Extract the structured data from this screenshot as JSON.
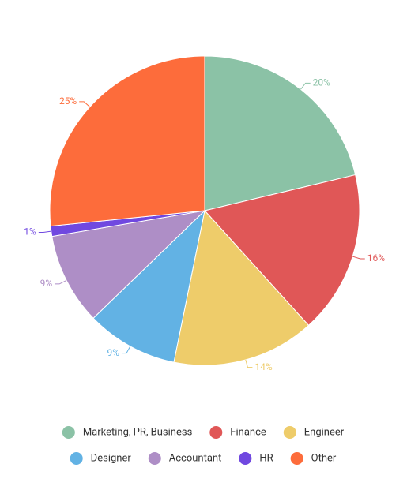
{
  "chart_data": {
    "type": "pie",
    "categories": [
      "Marketing, PR, Business",
      "Finance",
      "Engineer",
      "Designer",
      "Accountant",
      "HR",
      "Other"
    ],
    "values": [
      20,
      16,
      14,
      9,
      9,
      1,
      25
    ],
    "value_labels": [
      "20%",
      "16%",
      "14%",
      "9%",
      "9%",
      "1%",
      "25%"
    ],
    "colors": [
      "#8bc2a6",
      "#e05757",
      "#eecc6a",
      "#62b2e4",
      "#ae8ec6",
      "#7048e0",
      "#fd6c3b"
    ],
    "legend": "bottom"
  }
}
